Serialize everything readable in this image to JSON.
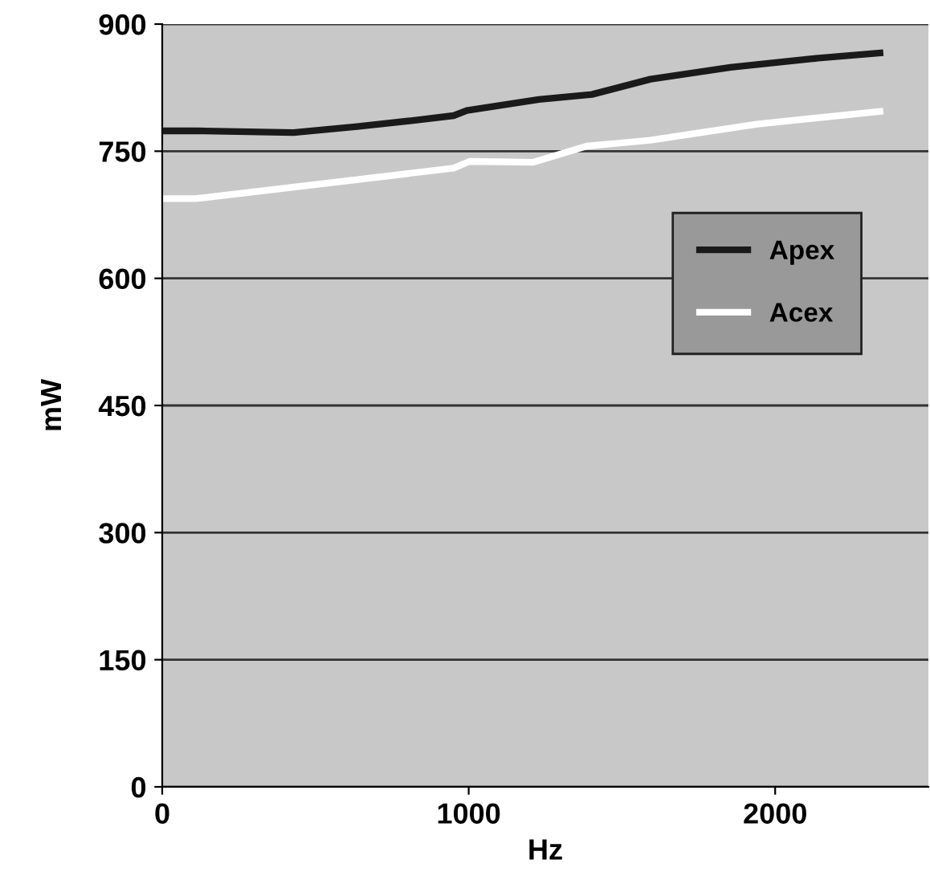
{
  "chart_data": {
    "type": "line",
    "xlabel": "Hz",
    "ylabel": "mW",
    "series": [
      {
        "name": "Apex",
        "color": "#1a1a1a",
        "x": [
          0,
          115,
          428,
          636,
          812,
          951,
          994,
          1229,
          1402,
          1593,
          1854,
          2115,
          2342
        ],
        "values": [
          774,
          774,
          772,
          779,
          786,
          792,
          798,
          811,
          817,
          835,
          849,
          859,
          866
        ]
      },
      {
        "name": "Acex",
        "color": "#ffffff",
        "x": [
          0,
          109,
          951,
          1003,
          1211,
          1385,
          1593,
          1941,
          2342
        ],
        "values": [
          694,
          694,
          730,
          738,
          737,
          756,
          763,
          782,
          797
        ]
      }
    ],
    "xlim": [
      0,
      2500
    ],
    "xticks": [
      0,
      1000,
      2000
    ],
    "ylim": [
      0,
      900
    ],
    "yticks": [
      0,
      150,
      300,
      450,
      600,
      750,
      900
    ],
    "grid": "y",
    "legend": "right",
    "marker": "none",
    "line_style": "solid"
  }
}
